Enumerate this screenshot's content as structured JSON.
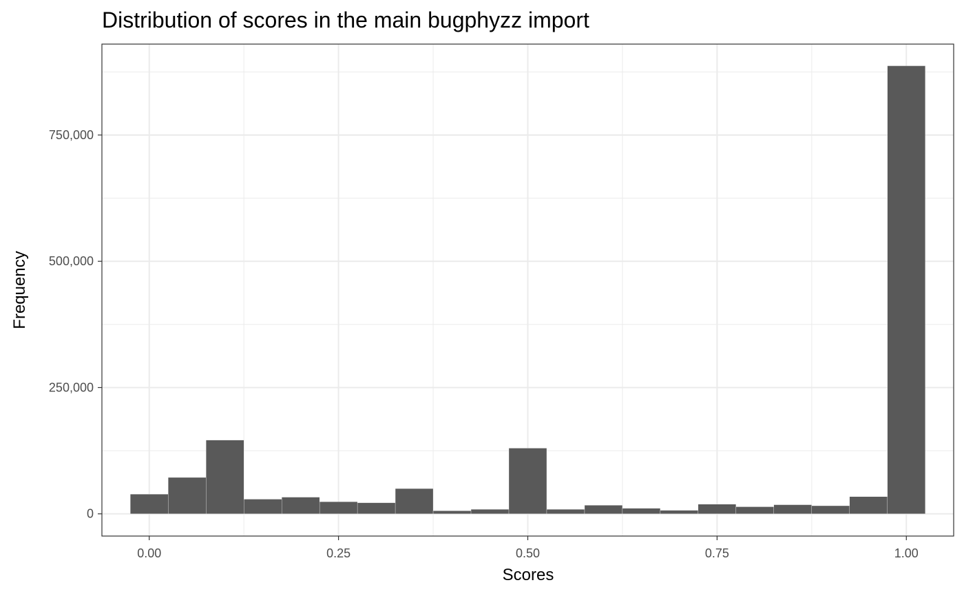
{
  "chart_data": {
    "type": "bar",
    "title": "Distribution of scores in the main bugphyzz import",
    "xlabel": "Scores",
    "ylabel": "Frequency",
    "bin_width": 0.05,
    "bins": [
      {
        "center": 0.0,
        "count": 39000
      },
      {
        "center": 0.05,
        "count": 72000
      },
      {
        "center": 0.1,
        "count": 146000
      },
      {
        "center": 0.15,
        "count": 29000
      },
      {
        "center": 0.2,
        "count": 33000
      },
      {
        "center": 0.25,
        "count": 24000
      },
      {
        "center": 0.3,
        "count": 22000
      },
      {
        "center": 0.35,
        "count": 50000
      },
      {
        "center": 0.4,
        "count": 6000
      },
      {
        "center": 0.45,
        "count": 9000
      },
      {
        "center": 0.5,
        "count": 130000
      },
      {
        "center": 0.55,
        "count": 9000
      },
      {
        "center": 0.6,
        "count": 17000
      },
      {
        "center": 0.65,
        "count": 11000
      },
      {
        "center": 0.7,
        "count": 7000
      },
      {
        "center": 0.75,
        "count": 19000
      },
      {
        "center": 0.8,
        "count": 14000
      },
      {
        "center": 0.85,
        "count": 18000
      },
      {
        "center": 0.9,
        "count": 16000
      },
      {
        "center": 0.95,
        "count": 34000
      },
      {
        "center": 1.0,
        "count": 887000
      }
    ],
    "xlim": [
      -0.0625,
      1.0625
    ],
    "ylim": [
      -44000,
      930000
    ],
    "x_ticks": [
      0,
      0.25,
      0.5,
      0.75,
      1
    ],
    "x_tick_labels": [
      "0.00",
      "0.25",
      "0.50",
      "0.75",
      "1.00"
    ],
    "y_ticks": [
      0,
      250000,
      500000,
      750000
    ],
    "y_tick_labels": [
      "0",
      "250,000",
      "500,000",
      "750,000"
    ],
    "bar_color": "#595959",
    "grid": true,
    "legend": "none"
  }
}
